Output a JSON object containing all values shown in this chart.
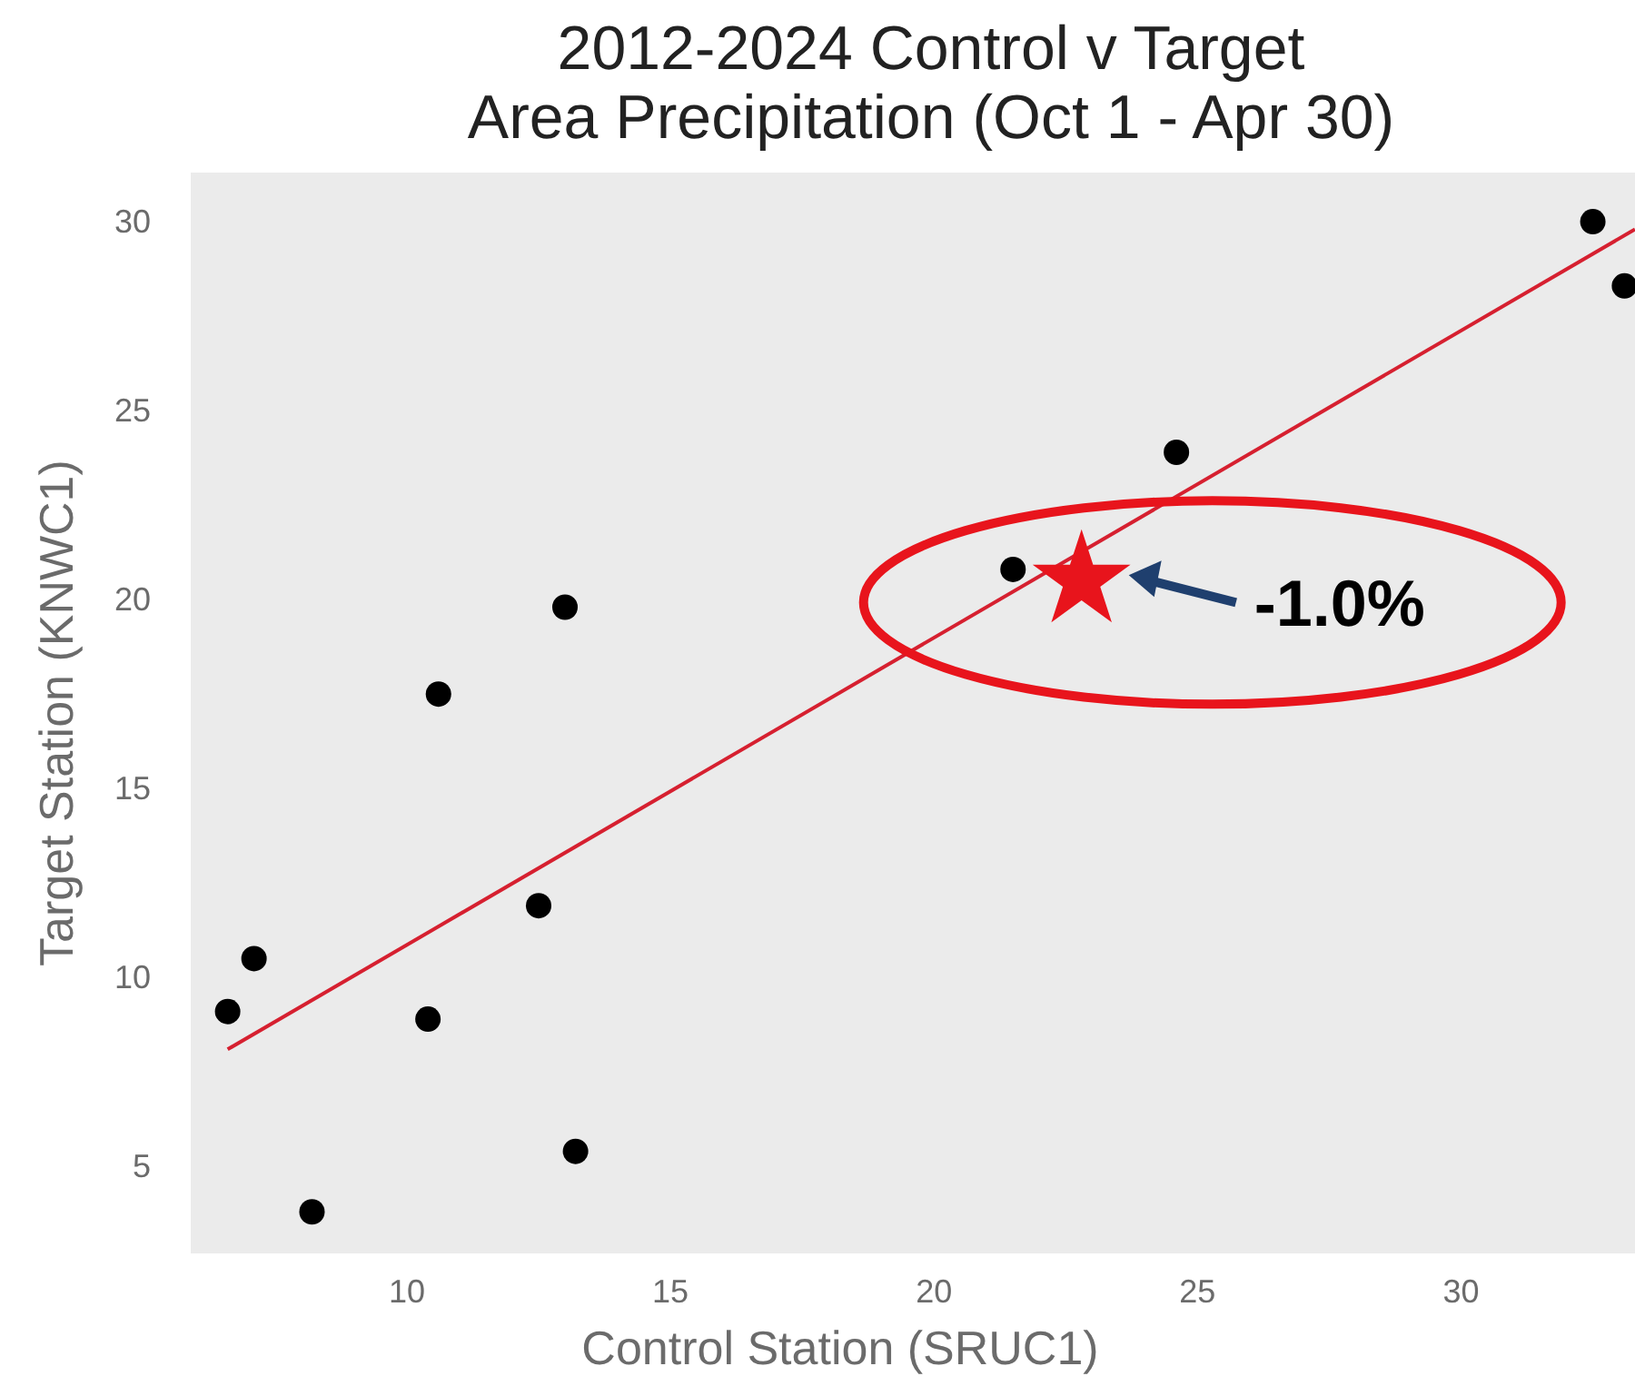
{
  "chart_data": {
    "type": "scatter",
    "title": "2012-2024 Control v Target\nArea Precipitation (Oct 1 - Apr 30)",
    "xlabel": "Control Station (SRUC1)",
    "ylabel": "Target Station (KNWC1)",
    "xlim": [
      5.9,
      33.3
    ],
    "ylim": [
      2.7,
      31.3
    ],
    "xticks": [
      10,
      15,
      20,
      25,
      30
    ],
    "yticks": [
      5,
      10,
      15,
      20,
      25,
      30
    ],
    "marker": "circle",
    "series": [
      {
        "color": "#000000",
        "x": [
          6.6,
          7.1,
          8.2,
          10.4,
          10.6,
          12.5,
          13.0,
          13.2,
          21.5,
          24.6,
          32.5,
          33.1
        ],
        "values": [
          9.1,
          10.5,
          3.8,
          8.9,
          17.5,
          11.9,
          19.8,
          5.4,
          20.8,
          23.9,
          30.0,
          28.3
        ]
      },
      {
        "type": "line",
        "color": "#d62030",
        "marker": "none",
        "x": [
          6.6,
          33.3
        ],
        "values": [
          8.1,
          29.8
        ]
      },
      {
        "type": "scatter",
        "color": "#e8141c",
        "marker": "star",
        "x": [
          22.8
        ],
        "values": [
          20.5
        ]
      }
    ],
    "annotations": [
      {
        "text": "-1.0%",
        "x": 22.8,
        "y": 20.5
      }
    ]
  }
}
